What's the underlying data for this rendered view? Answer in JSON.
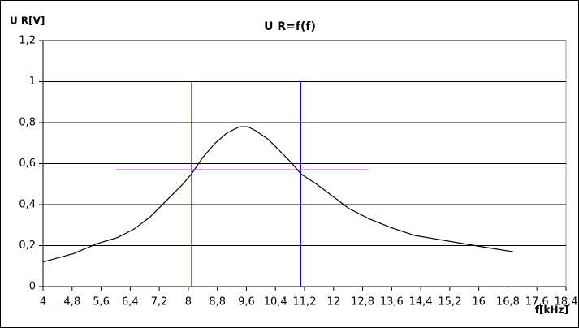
{
  "chart_data": {
    "type": "line",
    "title": "U R=f(f)",
    "y_label": "U R[V]",
    "x_label": "f[kHz]",
    "x": [
      4,
      4.83,
      5.5,
      6.06,
      6.5,
      6.95,
      7.4,
      7.85,
      8.09,
      8.4,
      8.74,
      9.07,
      9.41,
      9.64,
      9.86,
      10.19,
      10.53,
      10.86,
      11.1,
      11.53,
      11.98,
      12.43,
      12.99,
      13.55,
      14.22,
      14.89,
      15.56,
      16.23,
      16.94
    ],
    "values": [
      0.12,
      0.16,
      0.21,
      0.24,
      0.28,
      0.34,
      0.42,
      0.5,
      0.55,
      0.63,
      0.7,
      0.75,
      0.78,
      0.78,
      0.76,
      0.72,
      0.66,
      0.6,
      0.55,
      0.5,
      0.44,
      0.38,
      0.33,
      0.29,
      0.25,
      0.23,
      0.21,
      0.19,
      0.17
    ],
    "color": "#000000",
    "vlines": [
      {
        "x": 8.09,
        "y": [
          0,
          1
        ],
        "color": "#0000cc"
      },
      {
        "x": 11.1,
        "y": [
          0,
          1
        ],
        "color": "#0000cc"
      }
    ],
    "hlines": [
      {
        "y": 0.57,
        "x": [
          6.01,
          12.96
        ],
        "color": "#cc00cc"
      }
    ],
    "xlim": [
      4,
      18.4
    ],
    "xticks": [
      4,
      {
        "value": 4.8,
        "label": "4,8"
      },
      {
        "value": 5.6,
        "label": "5,6"
      },
      {
        "value": 6.4,
        "label": "6,4"
      },
      {
        "value": 7.2,
        "label": "7,2"
      },
      8,
      {
        "value": 8.8,
        "label": "8,8"
      },
      {
        "value": 9.6,
        "label": "9,6"
      },
      {
        "value": 10.4,
        "label": "10,4"
      },
      {
        "value": 11.2,
        "label": "11,2"
      },
      12,
      {
        "value": 12.8,
        "label": "12,8"
      },
      {
        "value": 13.6,
        "label": "13,6"
      },
      {
        "value": 14.4,
        "label": "14,4"
      },
      {
        "value": 15.2,
        "label": "15,2"
      },
      16,
      {
        "value": 16.8,
        "label": "16,8"
      },
      {
        "value": 17.6,
        "label": "17,6"
      },
      {
        "value": 18.4,
        "label": "18,4"
      }
    ],
    "ylim": [
      0,
      1.2
    ],
    "yticks": [
      0,
      {
        "value": 0.2,
        "label": "0,2"
      },
      {
        "value": 0.4,
        "label": "0,4"
      },
      {
        "value": 0.6,
        "label": "0,6"
      },
      {
        "value": 0.8,
        "label": "0,8"
      },
      1,
      {
        "value": 1.2,
        "label": "1,2"
      }
    ],
    "grid": true
  }
}
